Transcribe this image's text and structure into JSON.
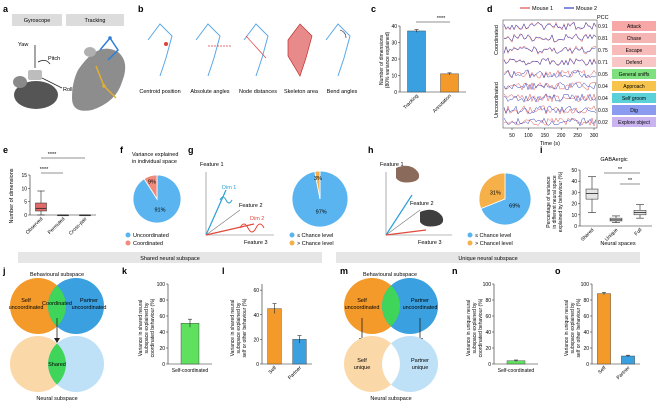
{
  "panels": {
    "a": "a",
    "b": "b",
    "c": "c",
    "d": "d",
    "e": "e",
    "f": "f",
    "g": "g",
    "h": "h",
    "i": "i",
    "j": "j",
    "k": "k",
    "l": "l",
    "m": "m",
    "n": "n",
    "o": "o"
  },
  "a": {
    "tab_gyroscope": "Gyroscope",
    "tab_tracking": "Tracking",
    "yaw": "Yaw",
    "pitch": "Pitch",
    "roll": "Roll"
  },
  "b": {
    "labels": [
      "Centroid position",
      "Absolute angles",
      "Node distances",
      "Skeleton area",
      "Bend angles"
    ]
  },
  "c": {
    "ylabel_1": "Number of dimensions",
    "ylabel_2": "(80% variance explained)",
    "significance": "****",
    "yticks": [
      "0",
      "10",
      "20",
      "30",
      "40"
    ]
  },
  "d": {
    "legend_1": "Mouse 1",
    "legend_2": "Mouse 2",
    "pcc": "PCC",
    "coordinated": "Coordinated",
    "uncoordinated": "Uncoordinated",
    "xlabel": "Time (s)",
    "xticks": [
      "50",
      "100",
      "150",
      "200",
      "250",
      "300"
    ],
    "rows": [
      {
        "value": "0.91",
        "behaviour": "Attack",
        "color": "#f7a8a6"
      },
      {
        "value": "0.81",
        "behaviour": "Chase",
        "color": "#f5b5b3"
      },
      {
        "value": "0.75",
        "behaviour": "Escape",
        "color": "#f7bcba"
      },
      {
        "value": "0.71",
        "behaviour": "Defend",
        "color": "#f8c6c4"
      },
      {
        "value": "0.05",
        "behaviour": "General sniffs",
        "color": "#7fe07f"
      },
      {
        "value": "0.04",
        "behaviour": "Approach",
        "color": "#f6c44a"
      },
      {
        "value": "0.04",
        "behaviour": "Self groom",
        "color": "#5ad0d8"
      },
      {
        "value": "0.03",
        "behaviour": "Dig",
        "color": "#8b9bf0"
      },
      {
        "value": "0.02",
        "behaviour": "Explore object",
        "color": "#c9b4f0"
      }
    ]
  },
  "e": {
    "ylabel": "Number of dimensions",
    "yticks": [
      "0",
      "5",
      "10",
      "15"
    ],
    "xticks": [
      "Observed",
      "Permuted",
      "Cross-pair"
    ],
    "sig": "****"
  },
  "f": {
    "title_1": "Variance explained",
    "title_2": "in individual space",
    "legend": [
      "Uncoordinated",
      "Coordinated"
    ]
  },
  "g": {
    "feature_1": "Feature 1",
    "feature_2": "Feature 2",
    "feature_3": "Feature 3",
    "dim_1": "Dim 1",
    "dim_2": "Dim 2",
    "legend": [
      "≤ Chance level",
      "> Chance level"
    ]
  },
  "h": {
    "feature_1": "Feature 1",
    "feature_2": "Feature 2",
    "feature_3": "Feature 3",
    "legend": [
      "≤ Chance level",
      "> Chancel level"
    ]
  },
  "i": {
    "title": "GABAergic",
    "ylabel_1": "Percentage of variance",
    "ylabel_2": "in different neural space",
    "ylabel_3": "explained by behaviour (%)",
    "yticks": [
      "0",
      "10",
      "20",
      "30",
      "40",
      "50"
    ],
    "xticks": [
      "Shared",
      "Unique",
      "Full"
    ],
    "xlabel": "Neural spaces",
    "sig": "**"
  },
  "banners": {
    "shared": "Shared neural subspace",
    "unique": "Unique neural subspace"
  },
  "j": {
    "behavioural": "Behavioural subspace",
    "self_1": "Self",
    "self_2": "uncoordinated",
    "coord": "Coordinated",
    "partner_1": "Partner",
    "partner_2": "uncoordinated",
    "shared": "Shared",
    "neural": "Neural subspace"
  },
  "k": {
    "ylabel_1": "Variance in shared neural",
    "ylabel_2": "subspace explained by",
    "ylabel_3": "coordinated behaviour (%)",
    "yticks": [
      "0",
      "20",
      "40",
      "60",
      "80",
      "100"
    ],
    "xtick": "Self-coordinated"
  },
  "l": {
    "ylabel_1": "Variance in shared neural",
    "ylabel_2": "subspace explained by",
    "ylabel_3": "self or other behaviour (%)",
    "yticks": [
      "0",
      "20",
      "40",
      "60"
    ],
    "xticks": [
      "Self",
      "Partner"
    ]
  },
  "m": {
    "behavioural": "Behavioural subspace",
    "self_1": "Self",
    "self_2": "uncoordinated",
    "partner_1": "Partner",
    "partner_2": "uncoordinated",
    "self_u_1": "Self",
    "self_u_2": "unique",
    "partner_u_1": "Partner",
    "partner_u_2": "unique",
    "neural": "Neural subspace"
  },
  "n": {
    "ylabel_1": "Variance in unique neural",
    "ylabel_2": "subspace explained by",
    "ylabel_3": "coordinated behaviour (%)",
    "yticks": [
      "0",
      "20",
      "40",
      "60",
      "80",
      "100"
    ],
    "xtick": "Self-coordinated"
  },
  "o": {
    "ylabel_1": "Variance in unique neural",
    "ylabel_2": "subspace explained by",
    "ylabel_3": "self or other behaviour (%)",
    "yticks": [
      "0",
      "20",
      "40",
      "60",
      "80",
      "100"
    ],
    "xticks": [
      "Self",
      "Partner"
    ]
  },
  "chart_data": [
    {
      "id": "c",
      "type": "bar",
      "categories": [
        "Tracking",
        "Annotation"
      ],
      "values": [
        37,
        11
      ],
      "errors": [
        0.8,
        0.6
      ],
      "ylim": [
        0,
        40
      ],
      "colors": [
        "#3aa0e0",
        "#f39a2a"
      ]
    },
    {
      "id": "e",
      "type": "box",
      "categories": [
        "Observed",
        "Permuted",
        "Cross-pair"
      ],
      "boxes": [
        {
          "min": 0,
          "q1": 1.5,
          "median": 2.5,
          "q3": 4.5,
          "max": 9
        },
        {
          "min": 0,
          "q1": 0,
          "median": 0,
          "q3": 0,
          "max": 0
        },
        {
          "min": 0,
          "q1": 0,
          "median": 0,
          "q3": 0,
          "max": 0
        }
      ],
      "ylim": [
        0,
        15
      ]
    },
    {
      "id": "f",
      "type": "pie",
      "categories": [
        "Uncoordinated",
        "Coordinated"
      ],
      "values": [
        91,
        9
      ],
      "labels": [
        "91%",
        "9%"
      ],
      "colors": [
        "#5ab4f0",
        "#f08a7a"
      ]
    },
    {
      "id": "g",
      "type": "pie",
      "categories": [
        "≤ Chance level",
        "> Chance level"
      ],
      "values": [
        97,
        3
      ],
      "labels": [
        "97%",
        "3%"
      ],
      "colors": [
        "#5ab4f0",
        "#f5b04a"
      ]
    },
    {
      "id": "h",
      "type": "pie",
      "categories": [
        "≤ Chance level",
        "> Chancel level"
      ],
      "values": [
        69,
        31
      ],
      "labels": [
        "69%",
        "31%"
      ],
      "colors": [
        "#5ab4f0",
        "#f5b04a"
      ]
    },
    {
      "id": "i",
      "type": "box",
      "categories": [
        "Shared",
        "Unique",
        "Full"
      ],
      "boxes": [
        {
          "min": 12,
          "q1": 24,
          "median": 29,
          "q3": 33,
          "max": 44
        },
        {
          "min": 3,
          "q1": 4.5,
          "median": 5.5,
          "q3": 7,
          "max": 9
        },
        {
          "min": 7,
          "q1": 10,
          "median": 12,
          "q3": 14,
          "max": 19
        }
      ],
      "ylim": [
        0,
        50
      ]
    },
    {
      "id": "k",
      "type": "bar",
      "categories": [
        "Self-coordinated"
      ],
      "values": [
        51
      ],
      "errors": [
        5
      ],
      "ylim": [
        0,
        100
      ],
      "colors": [
        "#5fe05f"
      ]
    },
    {
      "id": "l",
      "type": "bar",
      "categories": [
        "Self",
        "Partner"
      ],
      "values": [
        45,
        20
      ],
      "errors": [
        4,
        3
      ],
      "ylim": [
        0,
        65
      ],
      "colors": [
        "#f39a2a",
        "#3aa0e0"
      ]
    },
    {
      "id": "n",
      "type": "bar",
      "categories": [
        "Self-coordinated"
      ],
      "values": [
        4
      ],
      "errors": [
        1
      ],
      "ylim": [
        0,
        100
      ],
      "colors": [
        "#5fe05f"
      ]
    },
    {
      "id": "o",
      "type": "bar",
      "categories": [
        "Self",
        "Partner"
      ],
      "values": [
        88,
        10
      ],
      "errors": [
        1.5,
        1
      ],
      "ylim": [
        0,
        100
      ],
      "colors": [
        "#f39a2a",
        "#3aa0e0"
      ]
    }
  ]
}
